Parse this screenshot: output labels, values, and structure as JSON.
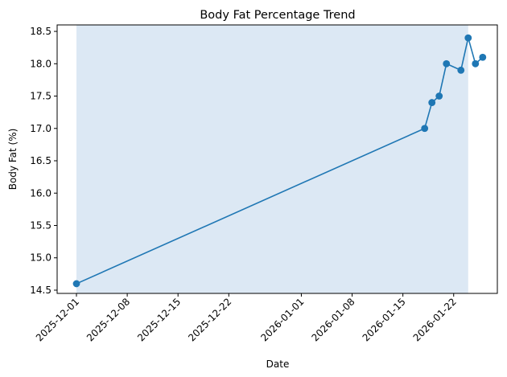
{
  "chart_data": {
    "type": "line",
    "title": "Body Fat Percentage Trend",
    "xlabel": "Date",
    "ylabel": "Body Fat (%)",
    "x_axis": "date",
    "xlim": [
      "2025-11-29",
      "2026-01-25"
    ],
    "ylim": [
      14.45,
      18.6
    ],
    "xticks": [
      "2025-12-01",
      "2025-12-08",
      "2025-12-15",
      "2025-12-22",
      "2026-01-01",
      "2026-01-08",
      "2026-01-15",
      "2026-01-22"
    ],
    "yticks": [
      14.5,
      15.0,
      15.5,
      16.0,
      16.5,
      17.0,
      17.5,
      18.0,
      18.5
    ],
    "ytick_labels": [
      "14.5",
      "15.0",
      "15.5",
      "16.0",
      "16.5",
      "17.0",
      "17.5",
      "18.0",
      "18.5"
    ],
    "grid": false,
    "shaded_region": {
      "x_start": "2025-12-01",
      "x_end": "2026-01-24",
      "color": "#dce8f4"
    },
    "series": [
      {
        "color": "#1f77b4",
        "marker": "circle",
        "points": [
          {
            "x": "2025-12-01",
            "y": 14.6
          },
          {
            "x": "2026-01-18",
            "y": 17.0
          },
          {
            "x": "2026-01-19",
            "y": 17.4
          },
          {
            "x": "2026-01-20",
            "y": 17.5
          },
          {
            "x": "2026-01-21",
            "y": 18.0
          },
          {
            "x": "2026-01-23",
            "y": 17.9
          },
          {
            "x": "2026-01-24",
            "y": 18.4
          },
          {
            "x": "2026-01-25",
            "y": 18.0
          },
          {
            "x": "2026-01-26",
            "y": 18.1
          }
        ]
      }
    ]
  }
}
